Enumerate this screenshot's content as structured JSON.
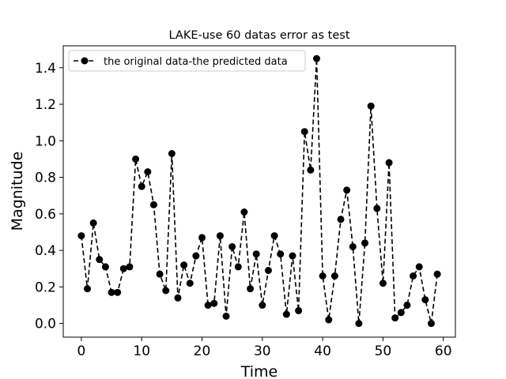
{
  "chart_data": {
    "type": "line",
    "title": "LAKE-use 60 datas error as test",
    "xlabel": "Time",
    "ylabel": "Magnitude",
    "xlim": [
      -3,
      62
    ],
    "ylim": [
      -0.075,
      1.52
    ],
    "xticks": [
      0,
      10,
      20,
      30,
      40,
      50,
      60
    ],
    "yticks": [
      0.0,
      0.2,
      0.4,
      0.6,
      0.8,
      1.0,
      1.2,
      1.4
    ],
    "grid": false,
    "legend_position": "top-left",
    "series": [
      {
        "name": "the original data-the predicted data",
        "color": "#000000",
        "line_style": "dashed",
        "marker": "circle",
        "x": [
          0,
          1,
          2,
          3,
          4,
          5,
          6,
          7,
          8,
          9,
          10,
          11,
          12,
          13,
          14,
          15,
          16,
          17,
          18,
          19,
          20,
          21,
          22,
          23,
          24,
          25,
          26,
          27,
          28,
          29,
          30,
          31,
          32,
          33,
          34,
          35,
          36,
          37,
          38,
          39,
          40,
          41,
          42,
          43,
          44,
          45,
          46,
          47,
          48,
          49,
          50,
          51,
          52,
          53,
          54,
          55,
          56,
          57,
          58,
          59
        ],
        "y": [
          0.48,
          0.19,
          0.55,
          0.35,
          0.31,
          0.17,
          0.17,
          0.3,
          0.31,
          0.9,
          0.75,
          0.83,
          0.65,
          0.27,
          0.18,
          0.93,
          0.14,
          0.32,
          0.22,
          0.37,
          0.47,
          0.1,
          0.11,
          0.48,
          0.04,
          0.42,
          0.31,
          0.61,
          0.19,
          0.38,
          0.1,
          0.29,
          0.48,
          0.38,
          0.05,
          0.37,
          0.07,
          1.05,
          0.84,
          1.45,
          0.26,
          0.02,
          0.26,
          0.57,
          0.73,
          0.42,
          0.0,
          0.44,
          1.19,
          0.63,
          0.22,
          0.88,
          0.03,
          0.06,
          0.1,
          0.26,
          0.31,
          0.13,
          0.0,
          0.27
        ]
      }
    ]
  }
}
